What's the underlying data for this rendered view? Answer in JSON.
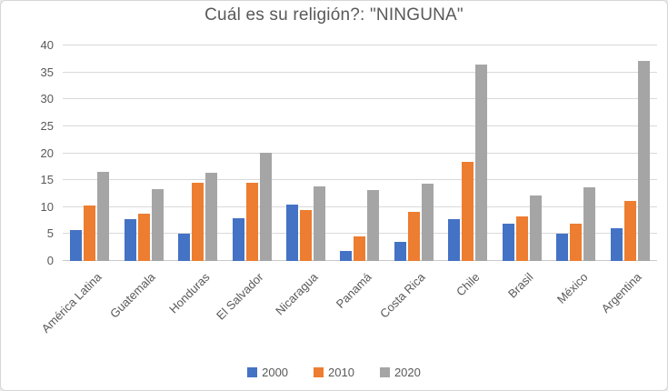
{
  "title": "Cuál es su religión?: \"NINGUNA\"",
  "colors": {
    "series_2000": "#4472C4",
    "series_2010": "#ED7D31",
    "series_2020": "#A5A5A5",
    "text": "#595959",
    "gridline": "#D9D9D9"
  },
  "legend": {
    "items": [
      "2000",
      "2010",
      "2020"
    ]
  },
  "chart_data": {
    "type": "bar",
    "title": "Cuál es su religión?: \"NINGUNA\"",
    "categories": [
      "América Latina",
      "Guatemala",
      "Honduras",
      "El Salvador",
      "Nicaragua",
      "Panamá",
      "Costa Rica",
      "Chile",
      "Brasil",
      "México",
      "Argentina"
    ],
    "series": [
      {
        "name": "2000",
        "color": "#4472C4",
        "values": [
          5.7,
          7.8,
          5.1,
          8.0,
          10.5,
          1.9,
          3.6,
          7.7,
          7.0,
          5.1,
          6.1
        ]
      },
      {
        "name": "2010",
        "color": "#ED7D31",
        "values": [
          10.3,
          8.8,
          14.5,
          14.6,
          9.5,
          4.5,
          9.1,
          18.4,
          8.3,
          6.9,
          11.2
        ]
      },
      {
        "name": "2020",
        "color": "#A5A5A5",
        "values": [
          16.6,
          13.4,
          16.4,
          20.1,
          13.8,
          13.1,
          14.3,
          36.5,
          12.2,
          13.7,
          37.2
        ]
      }
    ],
    "xlabel": "",
    "ylabel": "",
    "ylim": [
      0,
      40
    ],
    "ytick_step": 5,
    "grid": true,
    "legend_position": "bottom"
  }
}
